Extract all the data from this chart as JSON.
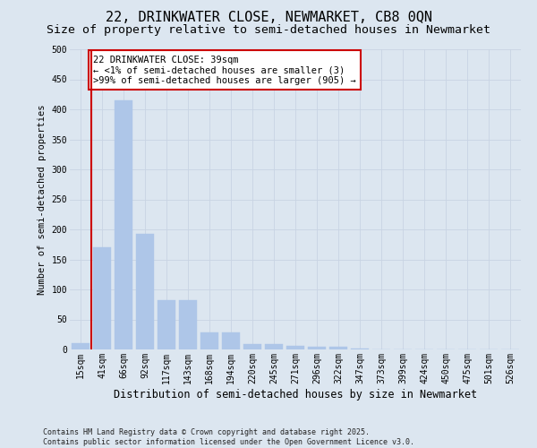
{
  "title": "22, DRINKWATER CLOSE, NEWMARKET, CB8 0QN",
  "subtitle": "Size of property relative to semi-detached houses in Newmarket",
  "xlabel": "Distribution of semi-detached houses by size in Newmarket",
  "ylabel": "Number of semi-detached properties",
  "categories": [
    "15sqm",
    "41sqm",
    "66sqm",
    "92sqm",
    "117sqm",
    "143sqm",
    "168sqm",
    "194sqm",
    "220sqm",
    "245sqm",
    "271sqm",
    "296sqm",
    "322sqm",
    "347sqm",
    "373sqm",
    "399sqm",
    "424sqm",
    "450sqm",
    "475sqm",
    "501sqm",
    "526sqm"
  ],
  "values": [
    10,
    170,
    415,
    192,
    82,
    82,
    28,
    28,
    9,
    9,
    6,
    4,
    4,
    2,
    0,
    0,
    0,
    0,
    0,
    0,
    0
  ],
  "bar_color": "#aec6e8",
  "highlight_color": "#cc0000",
  "annotation_text": "22 DRINKWATER CLOSE: 39sqm\n← <1% of semi-detached houses are smaller (3)\n>99% of semi-detached houses are larger (905) →",
  "annotation_box_color": "#ffffff",
  "annotation_box_edge_color": "#cc0000",
  "vline_x": 0.5,
  "ylim": [
    0,
    500
  ],
  "yticks": [
    0,
    50,
    100,
    150,
    200,
    250,
    300,
    350,
    400,
    450,
    500
  ],
  "grid_color": "#c8d4e3",
  "background_color": "#dce6f0",
  "footer_text": "Contains HM Land Registry data © Crown copyright and database right 2025.\nContains public sector information licensed under the Open Government Licence v3.0.",
  "title_fontsize": 11,
  "subtitle_fontsize": 9.5,
  "xlabel_fontsize": 8.5,
  "ylabel_fontsize": 7.5,
  "tick_fontsize": 7,
  "annotation_fontsize": 7.5,
  "footer_fontsize": 6
}
